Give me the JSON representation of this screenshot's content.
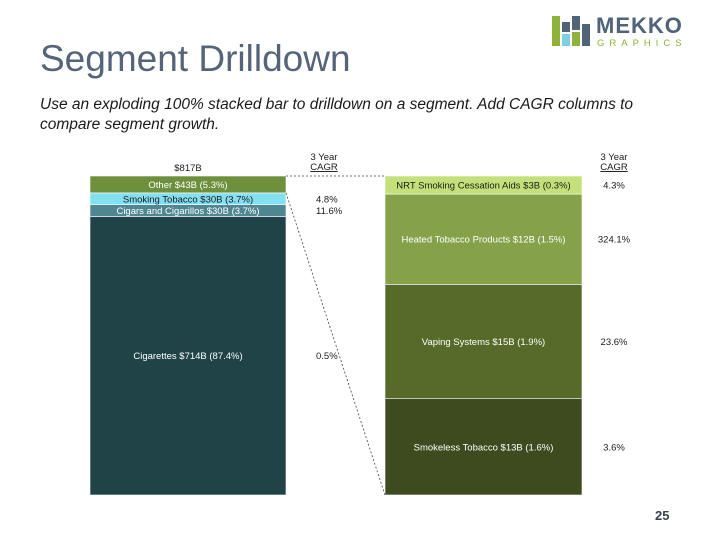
{
  "title": "Segment Drilldown",
  "subtitle": "Use an exploding 100% stacked bar to drilldown on a segment. Add CAGR columns to compare segment growth.",
  "logo": {
    "word": "MEKKO",
    "sub": "GRAPHICS"
  },
  "page_number": "25",
  "chart_data": [
    {
      "type": "stacked-bar",
      "total_label": "$817B",
      "cagr_header": "3 Year CAGR",
      "segments": [
        {
          "label": "Cigarettes $714B (87.4%)",
          "share": 87.4,
          "cagr": "0.5%",
          "color": "#1f4346"
        },
        {
          "label": "Cigars and Cigarillos $30B (3.7%)",
          "share": 3.7,
          "cagr": "11.6%",
          "color": "#4f8691"
        },
        {
          "label": "Smoking Tobacco $30B (3.7%)",
          "share": 3.7,
          "cagr": "4.8%",
          "color": "#82e0f2"
        },
        {
          "label": "Other $43B (5.3%)",
          "share": 5.3,
          "cagr": "",
          "color": "#6e8f3c"
        }
      ]
    },
    {
      "type": "stacked-bar",
      "cagr_header": "3 Year CAGR",
      "segments": [
        {
          "label": "Smokeless Tobacco $13B (1.6%)",
          "share": 1.6,
          "cagr": "3.6%",
          "color": "#3d4b1f"
        },
        {
          "label": "Vaping Systems $15B (1.9%)",
          "share": 1.9,
          "cagr": "23.6%",
          "color": "#566b2a"
        },
        {
          "label": "Heated Tobacco Products $12B (1.5%)",
          "share": 1.5,
          "cagr": "324.1%",
          "color": "#85a24b"
        },
        {
          "label": "NRT Smoking Cessation Aids $3B (0.3%)",
          "share": 0.3,
          "cagr": "4.3%",
          "color": "#c4e07a"
        }
      ]
    }
  ]
}
